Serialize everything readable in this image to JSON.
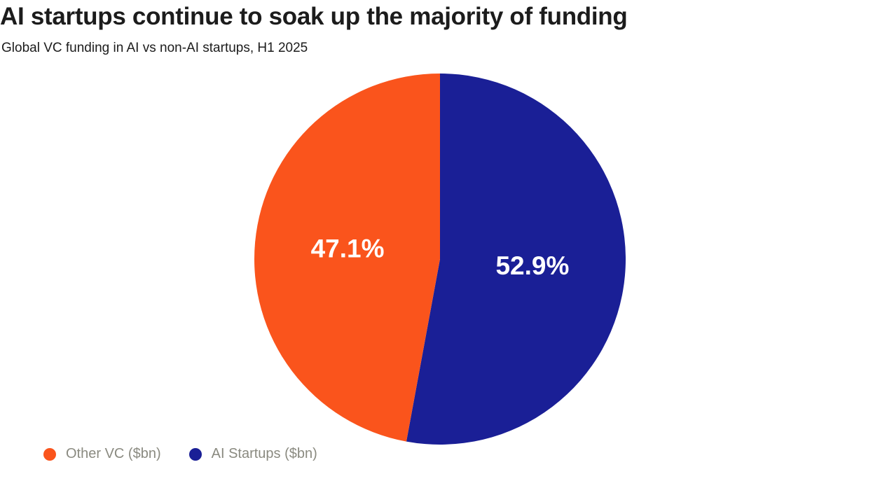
{
  "chart_data": {
    "type": "pie",
    "title": "AI startups continue to soak up the majority of funding",
    "subtitle": "Global VC funding in AI vs non-AI startups, H1 2025",
    "slices": [
      {
        "name": "Other VC ($bn)",
        "value": 47.1,
        "label": "47.1%",
        "color": "#FA541C"
      },
      {
        "name": "AI Startups ($bn)",
        "value": 52.9,
        "label": "52.9%",
        "color": "#1A1F96"
      }
    ],
    "legend_position": "bottom-left"
  }
}
